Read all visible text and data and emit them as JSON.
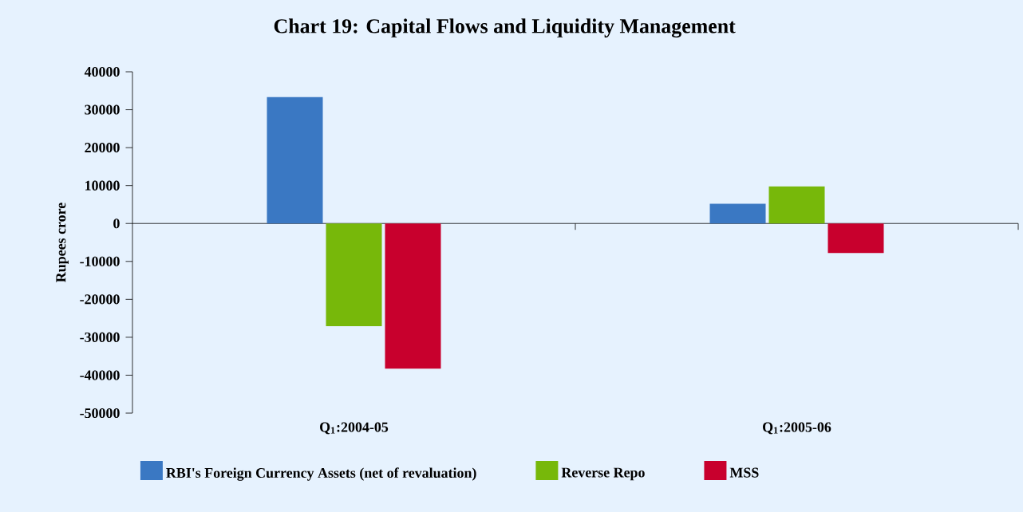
{
  "chart_data": {
    "type": "bar",
    "title": "Chart 19: Capital Flows and Liquidity Management",
    "ylabel": "Rupees crore",
    "categories": [
      "Q$_{1}$:2004-05",
      "Q$_{1}$:2005-06"
    ],
    "series": [
      {
        "name": "RBI's Foreign Currency Assets (net of revaluation)",
        "color": "#3a78c3",
        "values": [
          33300,
          5200
        ]
      },
      {
        "name": "Reverse Repo",
        "color": "#77b80a",
        "values": [
          -27100,
          9800
        ]
      },
      {
        "name": "MSS",
        "color": "#c8002d",
        "values": [
          -38300,
          -7800
        ]
      }
    ],
    "ylim": [
      -50000,
      40000
    ],
    "yticks": [
      -50000,
      -40000,
      -30000,
      -20000,
      -10000,
      0,
      10000,
      20000,
      30000,
      40000
    ],
    "legend": "bottom"
  }
}
